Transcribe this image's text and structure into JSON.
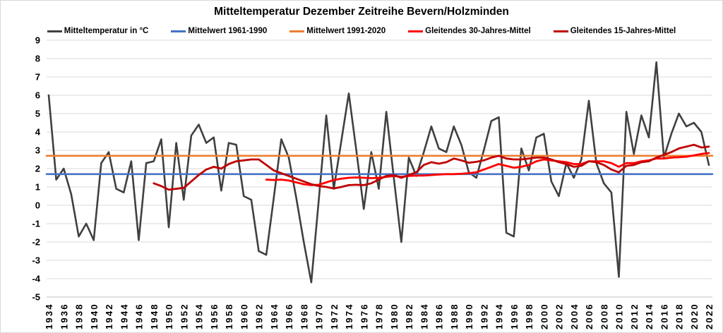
{
  "chart_data": {
    "type": "line",
    "title": "Mitteltemperatur Dezember Zeitreihe Bevern/Holzminden",
    "xlabel": "",
    "ylabel": "",
    "ylim": [
      -5,
      9
    ],
    "y_tick_step": 1,
    "x_range": [
      1934,
      2022
    ],
    "x_tick_step": 2,
    "grid": true,
    "legend_position": "top",
    "colors": {
      "background": "#ffffff",
      "grid": "#d9d9d9",
      "axis_line": "#bfbfbf",
      "text": "#000000"
    },
    "y_ticks": [
      9,
      8,
      7,
      6,
      5,
      4,
      3,
      2,
      1,
      0,
      -1,
      -2,
      -3,
      -4,
      -5
    ],
    "x_ticks": [
      1934,
      1936,
      1938,
      1940,
      1942,
      1944,
      1946,
      1948,
      1950,
      1952,
      1954,
      1956,
      1958,
      1960,
      1962,
      1964,
      1966,
      1968,
      1970,
      1972,
      1974,
      1976,
      1978,
      1980,
      1982,
      1984,
      1986,
      1988,
      1990,
      1992,
      1994,
      1996,
      1998,
      2000,
      2002,
      2004,
      2006,
      2008,
      2010,
      2012,
      2014,
      2016,
      2018,
      2020,
      2022
    ],
    "series": [
      {
        "name": "Mitteltemperatur in °C",
        "kind": "poly",
        "color": "#404040",
        "width": 2.6,
        "start_year": 1934,
        "values": [
          6.0,
          1.4,
          2.0,
          0.6,
          -1.7,
          -1.0,
          -1.9,
          2.3,
          2.9,
          0.9,
          0.7,
          2.4,
          -1.9,
          2.3,
          2.4,
          3.6,
          -1.2,
          3.4,
          0.3,
          3.8,
          4.4,
          3.4,
          3.7,
          0.8,
          3.4,
          3.3,
          0.5,
          0.3,
          -2.5,
          -2.7,
          0.4,
          3.6,
          2.6,
          0.4,
          -2.0,
          -4.2,
          0.3,
          4.9,
          0.9,
          3.5,
          6.1,
          3.0,
          -0.2,
          2.9,
          0.9,
          5.1,
          1.5,
          -2.0,
          2.6,
          1.6,
          2.9,
          4.3,
          3.1,
          2.9,
          4.3,
          3.3,
          1.8,
          1.5,
          3.0,
          4.6,
          4.8,
          -1.5,
          -1.7,
          3.1,
          1.9,
          3.7,
          3.9,
          1.3,
          0.5,
          2.3,
          1.5,
          2.5,
          5.7,
          2.3,
          1.2,
          0.7,
          -3.9,
          5.1,
          2.8,
          4.9,
          3.7,
          7.8,
          2.6,
          3.9,
          5.0,
          4.3,
          4.5,
          4.0,
          2.2
        ]
      },
      {
        "name": "Mittelwert 1961-1990",
        "kind": "flat",
        "color": "#4472c4",
        "width": 2.6,
        "value": 1.7
      },
      {
        "name": "Mittelwert 1991-2020",
        "kind": "flat",
        "color": "#ed7d31",
        "width": 2.6,
        "value": 2.7
      },
      {
        "name": "Gleitendes 30-Jahres-Mittel",
        "kind": "poly",
        "color": "#ff0000",
        "width": 2.8,
        "start_year": 1963,
        "values": [
          1.4,
          1.38,
          1.4,
          1.35,
          1.25,
          1.15,
          1.1,
          1.12,
          1.25,
          1.38,
          1.45,
          1.5,
          1.52,
          1.5,
          1.48,
          1.5,
          1.55,
          1.6,
          1.55,
          1.6,
          1.62,
          1.62,
          1.65,
          1.68,
          1.7,
          1.7,
          1.72,
          1.75,
          1.8,
          1.95,
          2.1,
          2.25,
          2.15,
          2.05,
          2.1,
          2.2,
          2.4,
          2.5,
          2.45,
          2.4,
          2.35,
          2.25,
          2.25,
          2.4,
          2.4,
          2.4,
          2.3,
          2.1,
          2.3,
          2.3,
          2.4,
          2.45,
          2.55,
          2.55,
          2.6,
          2.62,
          2.65,
          2.72,
          2.8,
          2.85
        ]
      },
      {
        "name": "Gleitendes 15-Jahres-Mittel",
        "kind": "poly",
        "color": "#c00000",
        "width": 2.8,
        "start_year": 1948,
        "values": [
          1.2,
          1.05,
          0.85,
          0.9,
          0.95,
          1.3,
          1.65,
          1.95,
          2.1,
          2.0,
          2.25,
          2.4,
          2.45,
          2.5,
          2.5,
          2.2,
          1.9,
          1.75,
          1.6,
          1.45,
          1.3,
          1.15,
          1.05,
          1.0,
          0.92,
          1.0,
          1.1,
          1.12,
          1.1,
          1.2,
          1.4,
          1.6,
          1.65,
          1.5,
          1.65,
          1.8,
          2.2,
          2.35,
          2.27,
          2.35,
          2.55,
          2.45,
          2.32,
          2.37,
          2.45,
          2.6,
          2.7,
          2.55,
          2.5,
          2.5,
          2.55,
          2.6,
          2.6,
          2.5,
          2.35,
          2.25,
          2.1,
          2.15,
          2.4,
          2.35,
          2.2,
          1.95,
          1.8,
          2.15,
          2.2,
          2.35,
          2.4,
          2.6,
          2.75,
          2.9,
          3.1,
          3.2,
          3.3,
          3.15,
          3.2
        ]
      }
    ]
  }
}
